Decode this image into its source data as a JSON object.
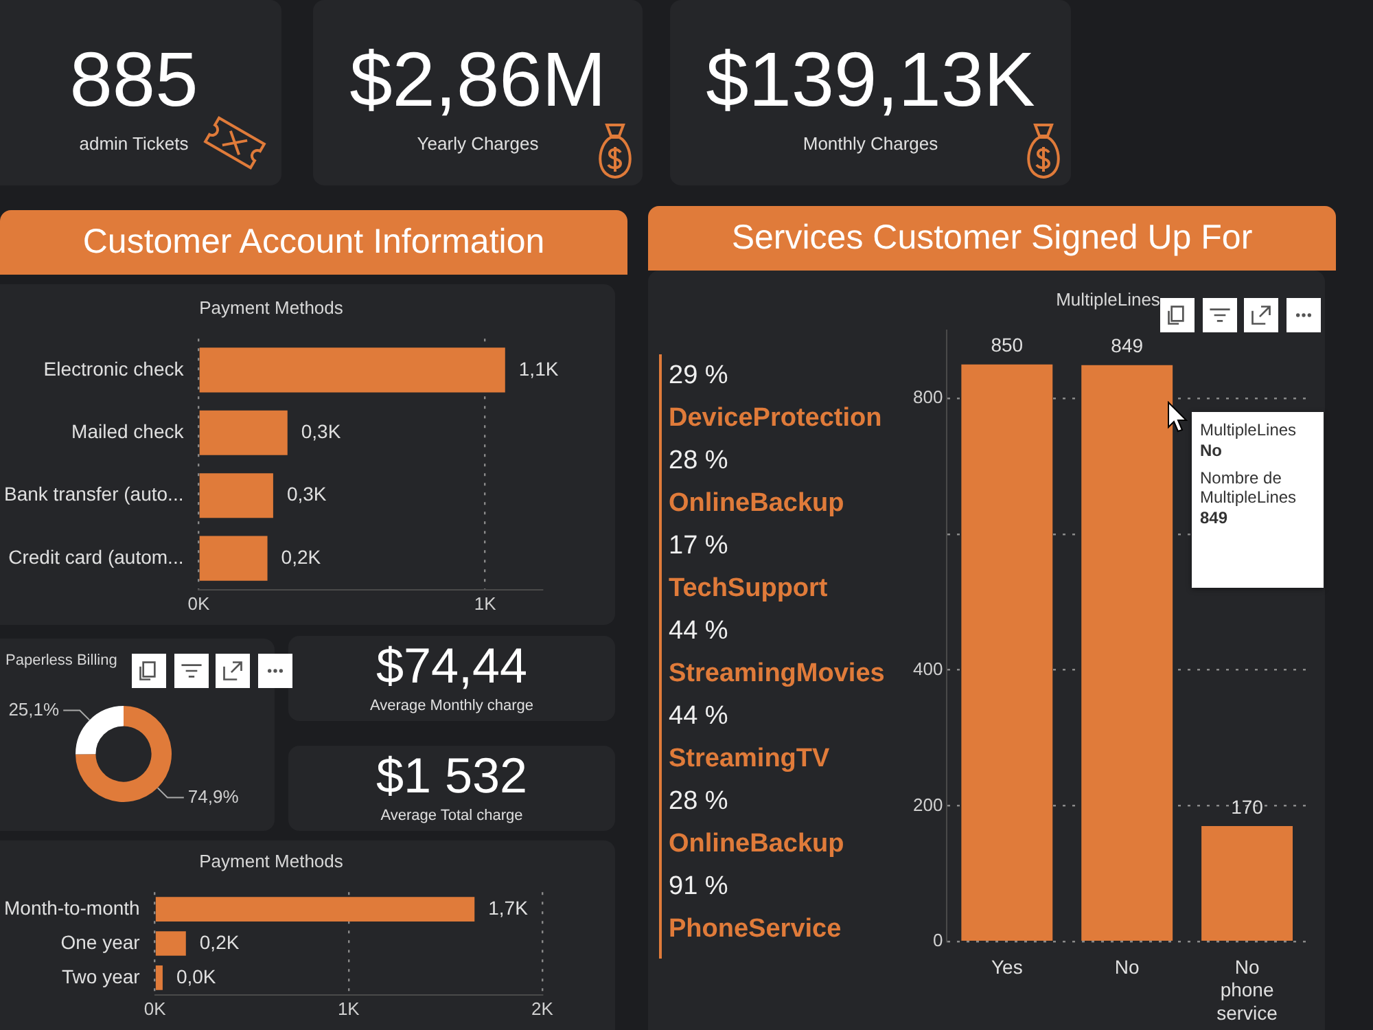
{
  "chart_data": [
    {
      "type": "other",
      "annotations": [
        "885",
        "admin Tickets",
        "$2,86M",
        "Yearly Charges",
        "$139,13K",
        "Monthly Charges"
      ]
    },
    {
      "type": "other",
      "title": "Customer Account Information"
    },
    {
      "type": "bar",
      "title": "Payment Methods",
      "orientation": "horizontal",
      "categories": [
        "Electronic check",
        "Mailed check",
        "Bank transfer (auto...",
        "Credit card (autom..."
      ],
      "values": [
        1.07,
        0.31,
        0.26,
        0.24
      ],
      "value_labels": [
        "1,1K",
        "0,3K",
        "0,3K",
        "0,2K"
      ],
      "color": "#e07b3a",
      "xlim": [
        0,
        1.2
      ],
      "xticks": [
        {
          "value": 0,
          "label": "0K"
        },
        {
          "value": 1,
          "label": "1K"
        }
      ],
      "grid": "x",
      "legend": false
    },
    {
      "type": "donut",
      "title": "Paperless Billing",
      "categories": [
        null,
        null
      ],
      "values": [
        74.9,
        25.1
      ],
      "value_labels": [
        "74,9%",
        "25,1%"
      ],
      "colors": [
        "#e07b3a",
        "#ffffff"
      ],
      "legend": false
    },
    {
      "type": "other",
      "annotations": [
        "$74,44",
        "Average Monthly charge",
        "$1 532",
        "Average Total charge"
      ]
    },
    {
      "type": "bar",
      "title": "Payment Methods",
      "orientation": "horizontal",
      "categories": [
        "Month-to-month",
        "One year",
        "Two year"
      ],
      "values": [
        1.65,
        0.16,
        0.04
      ],
      "value_labels": [
        "1,7K",
        "0,2K",
        "0,0K"
      ],
      "color": "#e07b3a",
      "xlim": [
        0,
        2
      ],
      "xticks": [
        {
          "value": 0,
          "label": "0K"
        },
        {
          "value": 1,
          "label": "1K"
        },
        {
          "value": 2,
          "label": "2K"
        }
      ],
      "grid": "x",
      "legend": false
    },
    {
      "type": "other",
      "title": "Services Customer Signed Up For"
    },
    {
      "type": "other",
      "annotations": [
        "29 %",
        "DeviceProtection",
        "28 %",
        "OnlineBackup",
        "17 %",
        "TechSupport",
        "44 %",
        "StreamingMovies",
        "44 %",
        "StreamingTV",
        "28 %",
        "OnlineBackup",
        "91 %",
        "PhoneService"
      ]
    },
    {
      "type": "bar",
      "title": "MultipleLines",
      "categories": [
        "Yes",
        "No",
        "No phone service"
      ],
      "values": [
        850,
        849,
        170
      ],
      "data_labels": true,
      "color": "#e07b3a",
      "ylim": [
        0,
        900
      ],
      "yticks": [
        0,
        200,
        400,
        {
          "value": 600,
          "label": null
        },
        800
      ],
      "grid": "y",
      "legend": false,
      "annotations": [
        "MultipleLines",
        "No",
        "Nombre de MultipleLines",
        "849"
      ]
    }
  ]
}
